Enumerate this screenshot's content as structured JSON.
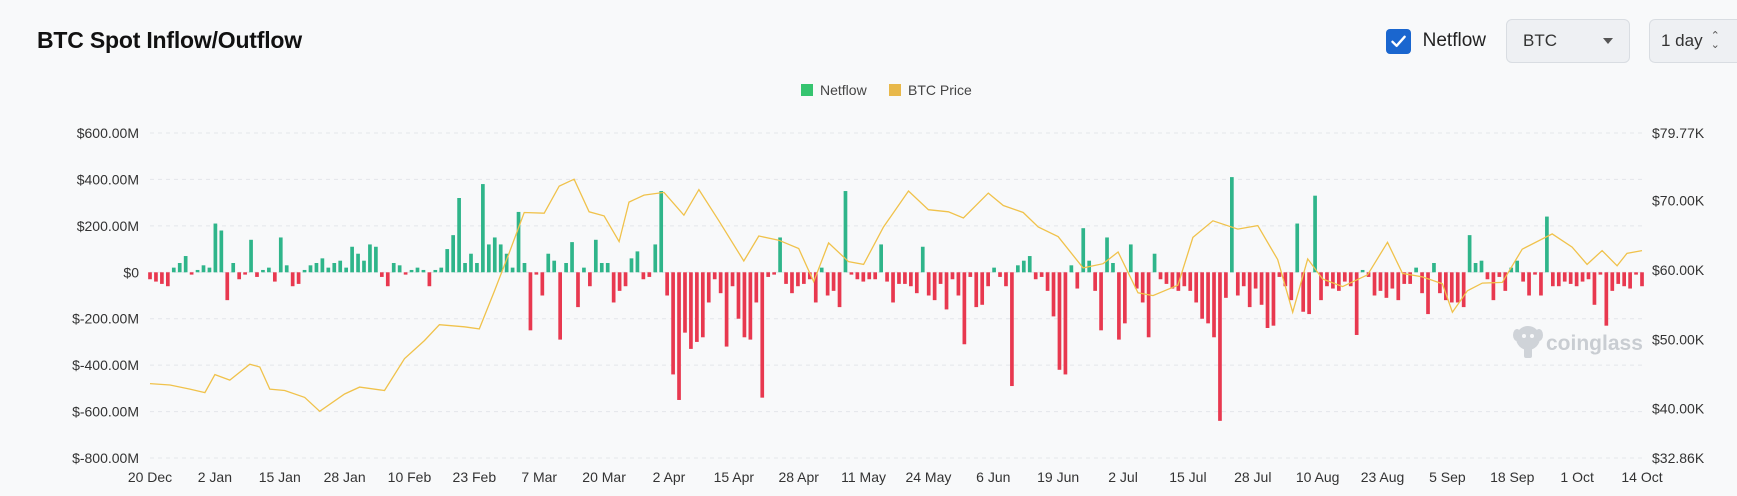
{
  "title": "BTC Spot Inflow/Outflow",
  "controls": {
    "netflow_label": "Netflow",
    "netflow_checked": true,
    "asset_select": "BTC",
    "interval_select": "1 day"
  },
  "watermark": "coinglass",
  "colors": {
    "inflow": "#2fb58a",
    "outflow": "#e8384f",
    "price": "#f0c24b",
    "checkbox": "#1a66cf"
  },
  "chart_data": {
    "type": "bar",
    "legend": [
      {
        "name": "Netflow",
        "color": "#35c46f"
      },
      {
        "name": "BTC Price",
        "color": "#e8b84a"
      }
    ],
    "legend_position": "top-center",
    "grid": true,
    "y_left": {
      "ticks": [
        "$600.00M",
        "$400.00M",
        "$200.00M",
        "$0",
        "$-200.00M",
        "$-400.00M",
        "$-600.00M",
        "$-800.00M"
      ],
      "range_musd": [
        -800,
        600
      ]
    },
    "y_right": {
      "ticks": [
        "$79.77K",
        "$70.00K",
        "$60.00K",
        "$50.00K",
        "$40.00K",
        "$32.86K"
      ],
      "range_usd": [
        32860,
        79770
      ]
    },
    "x_ticks": [
      "20 Dec",
      "2 Jan",
      "15 Jan",
      "28 Jan",
      "10 Feb",
      "23 Feb",
      "7 Mar",
      "20 Mar",
      "2 Apr",
      "15 Apr",
      "28 Apr",
      "11 May",
      "24 May",
      "6 Jun",
      "19 Jun",
      "2 Jul",
      "15 Jul",
      "28 Jul",
      "10 Aug",
      "23 Aug",
      "5 Sep",
      "18 Sep",
      "1 Oct",
      "14 Oct"
    ],
    "x_range": [
      "2023-12-20",
      "2024-10-14"
    ],
    "series": [
      {
        "name": "Netflow",
        "units": "USD millions",
        "values": [
          -30,
          -40,
          -50,
          -60,
          20,
          40,
          70,
          -10,
          10,
          30,
          20,
          210,
          180,
          -120,
          40,
          -30,
          -10,
          140,
          -20,
          10,
          20,
          -40,
          150,
          30,
          -60,
          -50,
          10,
          30,
          40,
          60,
          20,
          40,
          50,
          20,
          110,
          80,
          50,
          120,
          110,
          -20,
          -60,
          40,
          30,
          -10,
          10,
          20,
          10,
          -60,
          10,
          20,
          100,
          160,
          320,
          40,
          80,
          40,
          380,
          120,
          150,
          120,
          80,
          20,
          260,
          40,
          -250,
          -10,
          -100,
          80,
          50,
          -290,
          40,
          130,
          -150,
          20,
          -60,
          140,
          40,
          40,
          -130,
          -80,
          -60,
          60,
          90,
          -30,
          -20,
          120,
          350,
          -100,
          -440,
          -550,
          -260,
          -330,
          -300,
          -280,
          -130,
          -30,
          -90,
          -320,
          -60,
          -200,
          -280,
          -290,
          -130,
          -540,
          -20,
          -10,
          150,
          -50,
          -90,
          -60,
          -50,
          -30,
          -130,
          20,
          -100,
          -80,
          -150,
          350,
          -10,
          -30,
          -40,
          -30,
          -30,
          120,
          -40,
          -130,
          -50,
          -50,
          -60,
          -90,
          110,
          -100,
          -120,
          -50,
          -160,
          -30,
          -100,
          -310,
          -20,
          -150,
          -140,
          -60,
          20,
          -20,
          -60,
          -490,
          30,
          50,
          70,
          -30,
          -20,
          -80,
          -190,
          -420,
          -440,
          30,
          -70,
          190,
          50,
          -80,
          -250,
          150,
          40,
          -290,
          -220,
          120,
          -70,
          -130,
          -280,
          80,
          -30,
          -50,
          -70,
          -80,
          -60,
          -80,
          -130,
          -200,
          -220,
          -280,
          -640,
          -110,
          410,
          -100,
          -60,
          -150,
          -70,
          -140,
          -240,
          -230,
          -20,
          -60,
          -120,
          210,
          -170,
          -180,
          330,
          -120,
          -60,
          -70,
          -80,
          -40,
          -60,
          -270,
          10,
          -20,
          -100,
          -80,
          -110,
          -70,
          -120,
          -50,
          -50,
          20,
          -90,
          -180,
          40,
          -90,
          -120,
          -130,
          -130,
          -150,
          160,
          40,
          50,
          -30,
          -120,
          -20,
          -80,
          20,
          50,
          -40,
          -100,
          -10,
          -100,
          240,
          -60,
          -60,
          -40,
          -50,
          -60,
          -40,
          -30,
          -140,
          -10,
          -230,
          -80,
          -50,
          -60,
          -70,
          -10,
          -60
        ]
      },
      {
        "name": "BTC Price",
        "units": "USD",
        "points": [
          [
            "2023-12-20",
            43600
          ],
          [
            "2023-12-24",
            43400
          ],
          [
            "2023-12-28",
            42800
          ],
          [
            "2023-12-31",
            42300
          ],
          [
            "2024-01-02",
            44900
          ],
          [
            "2024-01-05",
            44100
          ],
          [
            "2024-01-09",
            46400
          ],
          [
            "2024-01-11",
            46000
          ],
          [
            "2024-01-13",
            42800
          ],
          [
            "2024-01-16",
            42600
          ],
          [
            "2024-01-20",
            41600
          ],
          [
            "2024-01-23",
            39600
          ],
          [
            "2024-01-28",
            42100
          ],
          [
            "2024-01-31",
            43100
          ],
          [
            "2024-02-05",
            42600
          ],
          [
            "2024-02-09",
            47200
          ],
          [
            "2024-02-13",
            49800
          ],
          [
            "2024-02-16",
            52100
          ],
          [
            "2024-02-21",
            51800
          ],
          [
            "2024-02-24",
            51500
          ],
          [
            "2024-02-27",
            56900
          ],
          [
            "2024-03-01",
            62500
          ],
          [
            "2024-03-04",
            68300
          ],
          [
            "2024-03-08",
            68200
          ],
          [
            "2024-03-11",
            72100
          ],
          [
            "2024-03-14",
            73100
          ],
          [
            "2024-03-17",
            68400
          ],
          [
            "2024-03-20",
            67800
          ],
          [
            "2024-03-23",
            64100
          ],
          [
            "2024-03-25",
            69800
          ],
          [
            "2024-03-28",
            70800
          ],
          [
            "2024-04-01",
            71200
          ],
          [
            "2024-04-05",
            67900
          ],
          [
            "2024-04-08",
            71600
          ],
          [
            "2024-04-12",
            67100
          ],
          [
            "2024-04-17",
            61300
          ],
          [
            "2024-04-20",
            64900
          ],
          [
            "2024-04-24",
            64300
          ],
          [
            "2024-04-28",
            63100
          ],
          [
            "2024-05-01",
            58300
          ],
          [
            "2024-05-04",
            63900
          ],
          [
            "2024-05-08",
            61200
          ],
          [
            "2024-05-11",
            60800
          ],
          [
            "2024-05-15",
            66200
          ],
          [
            "2024-05-20",
            71400
          ],
          [
            "2024-05-24",
            68700
          ],
          [
            "2024-05-28",
            68400
          ],
          [
            "2024-05-31",
            67500
          ],
          [
            "2024-06-05",
            71100
          ],
          [
            "2024-06-08",
            69300
          ],
          [
            "2024-06-12",
            68300
          ],
          [
            "2024-06-15",
            66200
          ],
          [
            "2024-06-19",
            64800
          ],
          [
            "2024-06-24",
            60300
          ],
          [
            "2024-06-28",
            60900
          ],
          [
            "2024-07-01",
            62600
          ],
          [
            "2024-07-05",
            56700
          ],
          [
            "2024-07-08",
            56300
          ],
          [
            "2024-07-13",
            57800
          ],
          [
            "2024-07-16",
            64700
          ],
          [
            "2024-07-20",
            67100
          ],
          [
            "2024-07-25",
            65900
          ],
          [
            "2024-07-29",
            66400
          ],
          [
            "2024-08-02",
            61500
          ],
          [
            "2024-08-05",
            53900
          ],
          [
            "2024-08-08",
            61600
          ],
          [
            "2024-08-11",
            58700
          ],
          [
            "2024-08-15",
            57600
          ],
          [
            "2024-08-20",
            59300
          ],
          [
            "2024-08-24",
            64000
          ],
          [
            "2024-08-27",
            59500
          ],
          [
            "2024-08-31",
            59000
          ],
          [
            "2024-09-04",
            58000
          ],
          [
            "2024-09-06",
            53900
          ],
          [
            "2024-09-09",
            57000
          ],
          [
            "2024-09-12",
            58100
          ],
          [
            "2024-09-16",
            58200
          ],
          [
            "2024-09-20",
            63000
          ],
          [
            "2024-09-26",
            65200
          ],
          [
            "2024-09-30",
            63300
          ],
          [
            "2024-10-03",
            60800
          ],
          [
            "2024-10-06",
            62800
          ],
          [
            "2024-10-09",
            60600
          ],
          [
            "2024-10-11",
            62400
          ],
          [
            "2024-10-14",
            62800
          ]
        ]
      }
    ]
  }
}
